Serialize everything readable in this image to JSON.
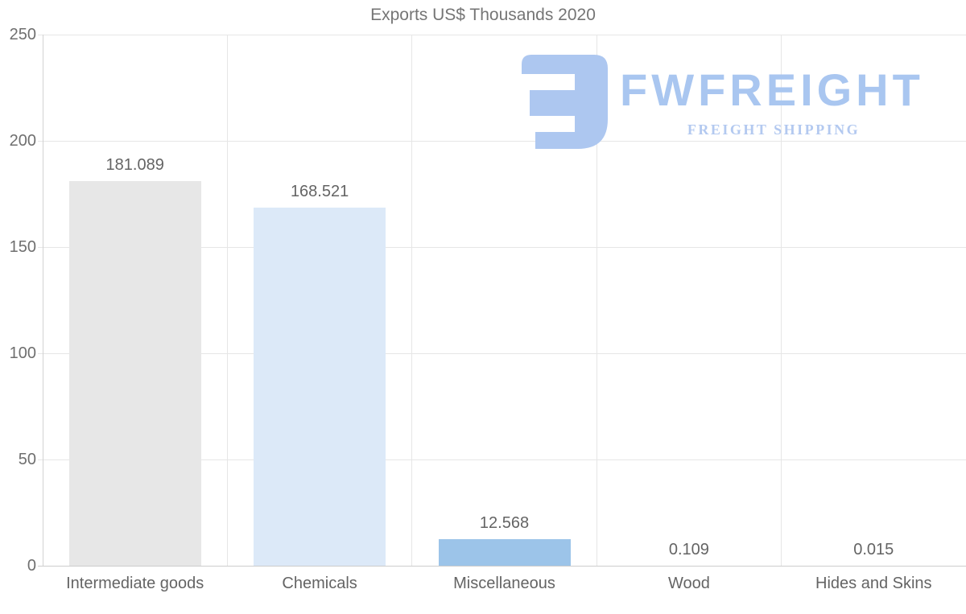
{
  "chart_data": {
    "type": "bar",
    "title": "Exports US$ Thousands 2020",
    "categories": [
      "Intermediate goods",
      "Chemicals",
      "Miscellaneous",
      "Wood",
      "Hides and Skins"
    ],
    "values": [
      181.089,
      168.521,
      12.568,
      0.109,
      0.015
    ],
    "value_labels": [
      "181.089",
      "168.521",
      "12.568",
      "0.109",
      "0.015"
    ],
    "xlabel": "",
    "ylabel": "",
    "ylim": [
      0,
      250
    ],
    "yticks": [
      0,
      50,
      100,
      150,
      200,
      250
    ],
    "grid": true,
    "legend": false,
    "bar_colors": [
      "#e7e7e7",
      "#dce9f8",
      "#9cc4e9",
      "#9cc4e9",
      "#9cc4e9"
    ]
  },
  "watermark": {
    "brand": "FWFREIGHT",
    "tagline": "FREIGHT SHIPPING",
    "brand_color": "#a9c6f0",
    "tagline_color": "#b3c9f0",
    "mark_color": "#adc7f0"
  },
  "colors": {
    "title_text": "#757575",
    "axis_text": "#6f6f6f",
    "label_text": "#646464",
    "grid_line": "#e6e6e6",
    "axis_line": "#d2d2d2",
    "baseline": "#cccccc"
  }
}
